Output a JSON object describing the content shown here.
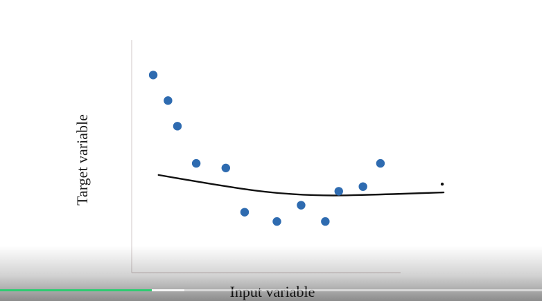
{
  "slide": {
    "title": ""
  },
  "chart_data": {
    "type": "scatter",
    "xlabel": "Input variable",
    "ylabel": "Target variable",
    "xlim": [
      0,
      10
    ],
    "ylim": [
      0,
      10
    ],
    "grid": false,
    "points": [
      {
        "x": 0.8,
        "y": 8.5
      },
      {
        "x": 1.35,
        "y": 7.4
      },
      {
        "x": 1.7,
        "y": 6.3
      },
      {
        "x": 2.4,
        "y": 4.7
      },
      {
        "x": 3.5,
        "y": 4.5
      },
      {
        "x": 4.2,
        "y": 2.6
      },
      {
        "x": 5.4,
        "y": 2.2
      },
      {
        "x": 6.3,
        "y": 2.9
      },
      {
        "x": 7.2,
        "y": 2.2
      },
      {
        "x": 7.7,
        "y": 3.5
      },
      {
        "x": 8.6,
        "y": 3.7
      },
      {
        "x": 9.25,
        "y": 4.7
      }
    ],
    "fit_line": [
      {
        "x": 1.0,
        "y": 4.2
      },
      {
        "x": 3.0,
        "y": 3.8
      },
      {
        "x": 5.0,
        "y": 3.45
      },
      {
        "x": 7.0,
        "y": 3.3
      },
      {
        "x": 9.0,
        "y": 3.35
      },
      {
        "x": 11.6,
        "y": 3.45
      }
    ],
    "colors": {
      "points": "#2e6bb0",
      "fit_line": "#111111",
      "axes": "#d9d0d0"
    }
  },
  "player": {
    "progress": 0.28,
    "buffered": 0.34,
    "accent": "#2ecc71"
  }
}
